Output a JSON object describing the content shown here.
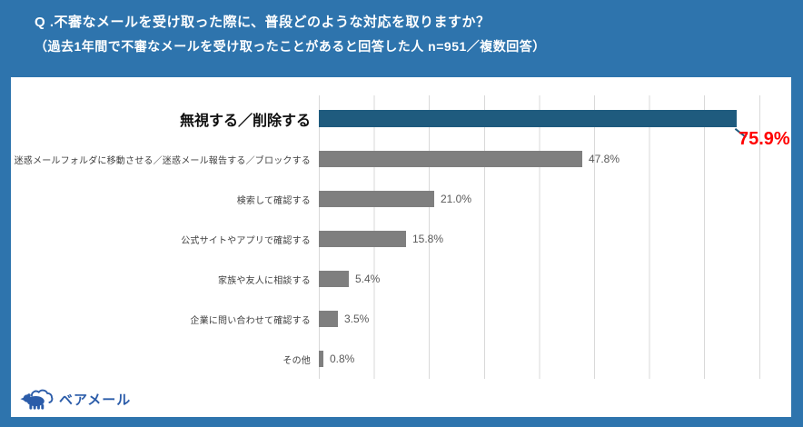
{
  "header": {
    "question": "Q .不審なメールを受け取った際に、普段どのような対応を取りますか？",
    "note": "（過去1年間で不審なメールを受け取ったことがあると回答した人 n=951／複数回答）"
  },
  "chart_data": {
    "type": "bar",
    "orientation": "horizontal",
    "categories": [
      "無視する／削除する",
      "迷惑メールフォルダに移動させる／迷惑メール報告する／ブロックする",
      "検索して確認する",
      "公式サイトやアプリで確認する",
      "家族や友人に相談する",
      "企業に問い合わせて確認する",
      "その他"
    ],
    "values": [
      75.9,
      47.8,
      21.0,
      15.8,
      5.4,
      3.5,
      0.8
    ],
    "value_labels": [
      "75.9%",
      "47.8%",
      "21.0%",
      "15.8%",
      "5.4%",
      "3.5%",
      "0.8%"
    ],
    "xlim": [
      0,
      80
    ],
    "gridline_interval_percent": 10,
    "grid": true,
    "legend": false,
    "highlight_index": 0,
    "colors": {
      "highlight_bar": "#1F5B7E",
      "bar": "#7F7F7F",
      "highlight_value": "#FF0000",
      "value_text": "#595959",
      "category_text": "#404040",
      "gridline": "#D9D9D9"
    }
  },
  "footer": {
    "logo_text": "ベアメール",
    "logo_icon": "bear-cloud-icon",
    "logo_color": "#2B5CA9"
  },
  "page": {
    "background": "#2E74AD",
    "card_background": "#FFFFFF"
  }
}
